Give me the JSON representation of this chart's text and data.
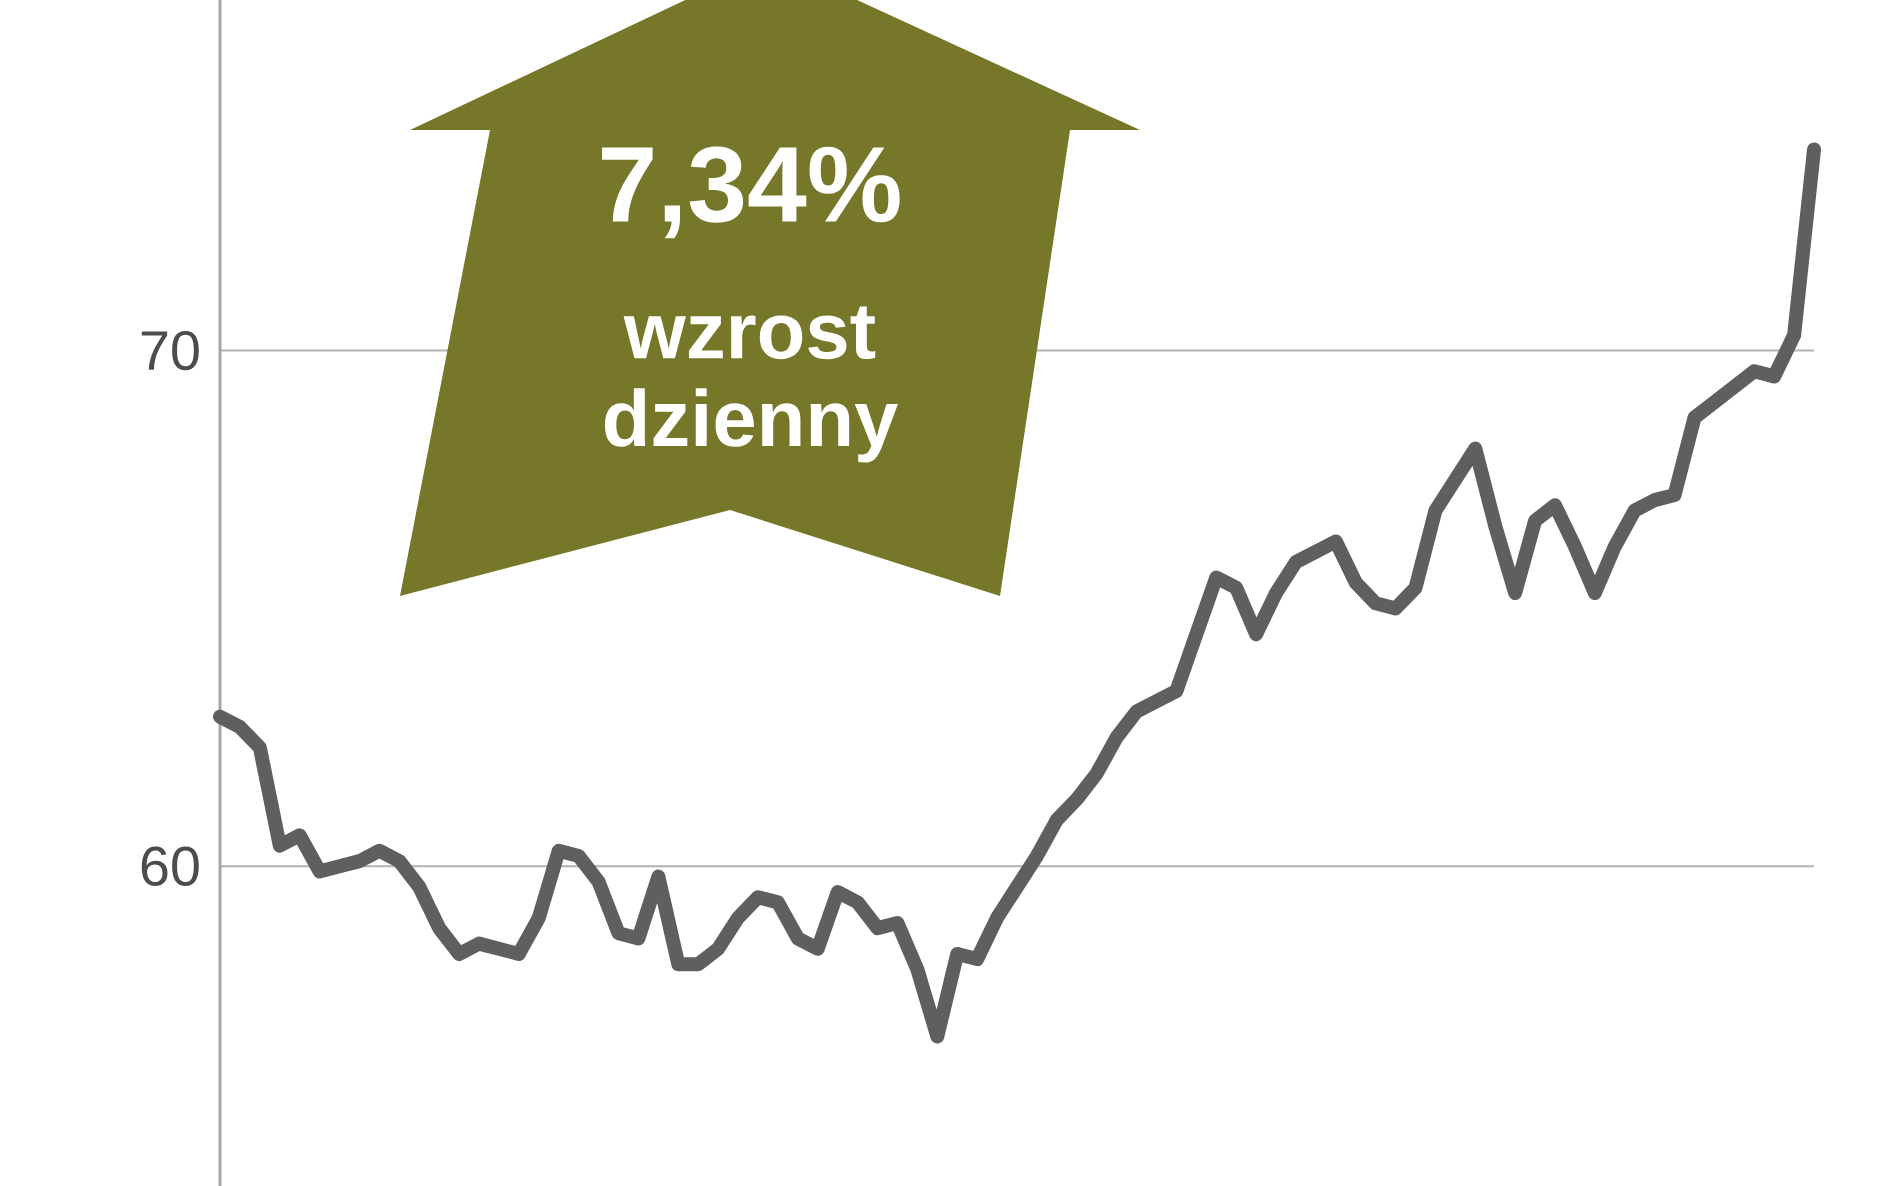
{
  "chart_data": {
    "type": "line",
    "categories": [
      null,
      null,
      null,
      null,
      null,
      null,
      null,
      null,
      null,
      null,
      null,
      null,
      null,
      null,
      null,
      null,
      null,
      null,
      null,
      null,
      null,
      null,
      null,
      null,
      null,
      null,
      null,
      null,
      null,
      null,
      null,
      null,
      null,
      null,
      null,
      null,
      null,
      null,
      null,
      null,
      null,
      null,
      null,
      null,
      null,
      null,
      null,
      null,
      null,
      null,
      null,
      null,
      null,
      null,
      null,
      null,
      null,
      null,
      null,
      null,
      null,
      null,
      null,
      null,
      null,
      null,
      null,
      null,
      null,
      null,
      null,
      null,
      null,
      null,
      null,
      null,
      null,
      null,
      null,
      null,
      null
    ],
    "values": [
      62.9,
      62.7,
      62.3,
      60.4,
      60.6,
      59.9,
      60.0,
      60.1,
      60.3,
      60.1,
      59.6,
      58.8,
      58.3,
      58.5,
      58.4,
      58.3,
      59.0,
      60.3,
      60.2,
      59.7,
      58.7,
      58.6,
      59.8,
      58.1,
      58.1,
      58.4,
      59.0,
      59.4,
      59.3,
      58.6,
      58.4,
      59.5,
      59.3,
      58.8,
      58.9,
      58.0,
      56.7,
      58.3,
      58.2,
      59.0,
      59.6,
      60.2,
      60.9,
      61.3,
      61.8,
      62.5,
      63.0,
      63.2,
      63.4,
      64.5,
      65.6,
      65.4,
      64.5,
      65.3,
      65.9,
      66.1,
      66.3,
      65.5,
      65.1,
      65.0,
      65.4,
      66.9,
      67.5,
      68.1,
      66.6,
      65.3,
      66.7,
      67.0,
      66.2,
      65.3,
      66.2,
      66.9,
      67.1,
      67.2,
      68.7,
      69.0,
      69.3,
      69.6,
      69.5,
      70.3,
      73.9
    ],
    "color": "#5f5f5f",
    "ylim": [
      53.8,
      76.8
    ],
    "yticks": [
      60,
      70
    ],
    "grid": "y",
    "tick_labels": "y",
    "marker": "none",
    "annotations": [
      "7,34%",
      "wzrost dzienny"
    ]
  }
}
